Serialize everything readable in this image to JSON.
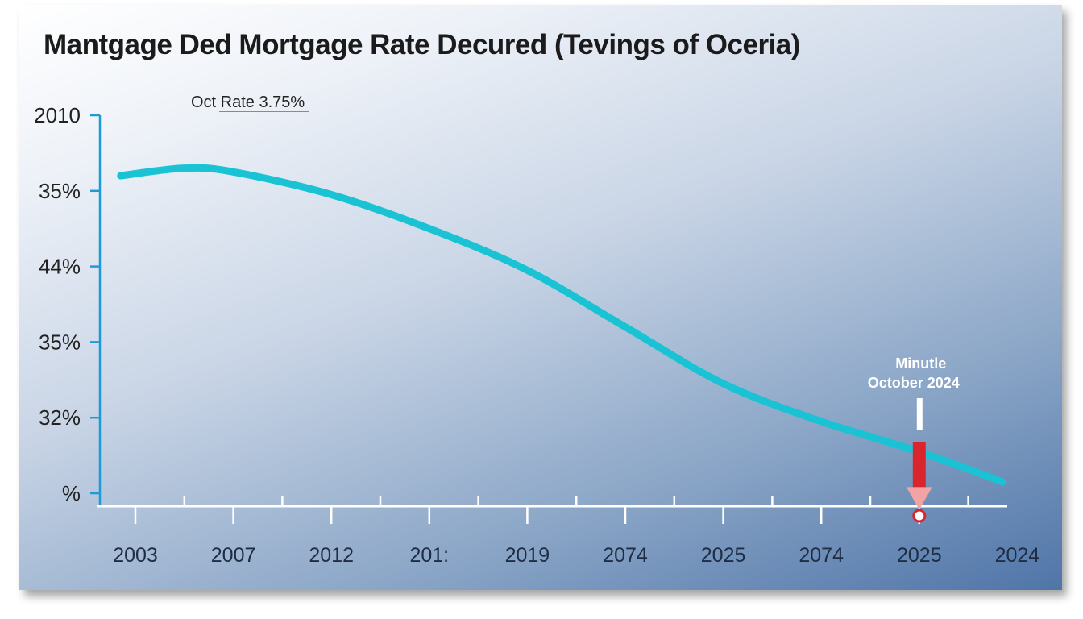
{
  "chart_data": {
    "type": "line",
    "title": "Mantgage Ded Mortgage Rate Decured (Tevings of Oceria)",
    "xlabel": "",
    "ylabel": "",
    "y_tick_labels": [
      "2010",
      "35%",
      "44%",
      "35%",
      "32%",
      "%"
    ],
    "x_tick_labels": [
      "2003",
      "2007",
      "2012",
      "201:",
      "2019",
      "2074",
      "2025",
      "2074",
      "2025",
      "2024"
    ],
    "ylim": [
      0,
      5
    ],
    "xlim": [
      0,
      9
    ],
    "series": [
      {
        "name": "Mortgage Rate",
        "color": "#19c3d4",
        "x": [
          -0.15,
          0.5,
          1.0,
          2.0,
          3.0,
          4.0,
          5.0,
          6.0,
          7.0,
          8.0,
          8.85
        ],
        "values": [
          4.2,
          4.3,
          4.25,
          3.95,
          3.5,
          2.95,
          2.2,
          1.45,
          0.95,
          0.55,
          0.15
        ]
      }
    ],
    "annotations": [
      {
        "text": "Oct Rate 3.75%",
        "position": "top-left"
      },
      {
        "line1": "Minutle",
        "line2": "October 2024",
        "x": 8.0,
        "y": 0.55,
        "marker_color": "#d9262c"
      }
    ],
    "grid": false,
    "legend": "none"
  }
}
